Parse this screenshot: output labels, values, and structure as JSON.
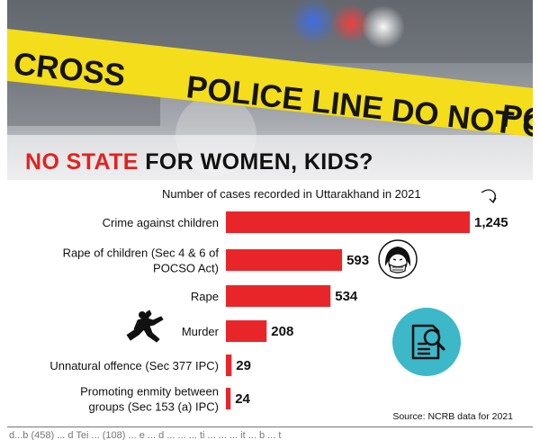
{
  "photo": {
    "tape_texts": [
      "CROSS",
      "POLICE LINE DO NOT CROSS",
      "PO"
    ]
  },
  "headline": {
    "red_part": "NO STATE",
    "black_part": "FOR WOMEN, KIDS?"
  },
  "subtitle": "Number of cases recorded in Uttarakhand in 2021",
  "source": "Source: NCRB data for 2021",
  "bottom_text": "d...b (458) ... d Tei ... (108) ... e ... d ... ... ... ti ... ... ... it ... b ... t",
  "colors": {
    "bar": "#e8262a",
    "accent_red": "#e2221f",
    "tape_yellow": "#f4dd1a",
    "icon_teal": "#3db8c9"
  },
  "icons": [
    "girl-with-mask-icon",
    "body-outline-icon",
    "document-search-icon",
    "curved-arrow-icon"
  ],
  "chart_data": {
    "type": "bar",
    "orientation": "horizontal",
    "title": "Number of cases recorded in Uttarakhand in 2021",
    "categories": [
      [
        "Crime against children"
      ],
      [
        "Rape of children (Sec 4 & 6 of",
        "POCSO Act)"
      ],
      [
        "Rape"
      ],
      [
        "Murder"
      ],
      [
        "Unnatural offence (Sec 377 IPC)"
      ],
      [
        "Promoting enmity between",
        "groups (Sec 153 (a) IPC)"
      ]
    ],
    "values": [
      1245,
      593,
      534,
      208,
      29,
      24
    ],
    "value_labels": [
      "1,245",
      "593",
      "534",
      "208",
      "29",
      "24"
    ],
    "xlim": [
      0,
      1245
    ],
    "grid": false,
    "legend": "none"
  }
}
